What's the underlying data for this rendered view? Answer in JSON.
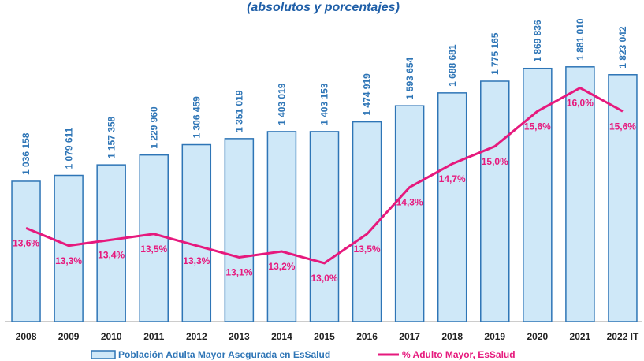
{
  "chart_data": {
    "type": "bar_line",
    "subtitle": "(absolutos y porcentajes)",
    "categories": [
      "2008",
      "2009",
      "2010",
      "2011",
      "2012",
      "2013",
      "2014",
      "2015",
      "2016",
      "2017",
      "2018",
      "2019",
      "2020",
      "2021",
      "2022 IT"
    ],
    "ylim": [
      0,
      2200000
    ],
    "y2lim": [
      12,
      17.1
    ],
    "series": [
      {
        "name": "Población Adulta Mayor Asegurada en EsSalud",
        "type": "bar",
        "color": "#cfe8f8",
        "edge_color": "#2e75b6",
        "label_color": "#2e75b6",
        "values": [
          1036158,
          1079611,
          1157358,
          1229960,
          1306459,
          1351019,
          1403019,
          1403153,
          1474919,
          1593654,
          1688681,
          1775165,
          1869836,
          1881010,
          1823042
        ],
        "value_labels": [
          "1 036 158",
          "1 079 611",
          "1 157 358",
          "1 229 960",
          "1 306 459",
          "1 351 019",
          "1 403 019",
          "1 403 153",
          "1 474 919",
          "1 593 654",
          "1 688 681",
          "1 775 165",
          "1 869 836",
          "1 881 010",
          "1 823 042"
        ]
      },
      {
        "name": "% Adulto Mayor, EsSalud",
        "type": "line",
        "axis": "y2",
        "color": "#e6197d",
        "values": [
          13.6,
          13.3,
          13.4,
          13.5,
          13.3,
          13.1,
          13.2,
          13.0,
          13.5,
          14.3,
          14.7,
          15.0,
          15.6,
          16.0,
          15.6
        ],
        "value_labels": [
          "13,6%",
          "13,3%",
          "13,4%",
          "13,5%",
          "13,3%",
          "13,1%",
          "13,2%",
          "13,0%",
          "13,5%",
          "14,3%",
          "14,7%",
          "15,0%",
          "15,6%",
          "16,0%",
          "15,6%"
        ]
      }
    ]
  }
}
